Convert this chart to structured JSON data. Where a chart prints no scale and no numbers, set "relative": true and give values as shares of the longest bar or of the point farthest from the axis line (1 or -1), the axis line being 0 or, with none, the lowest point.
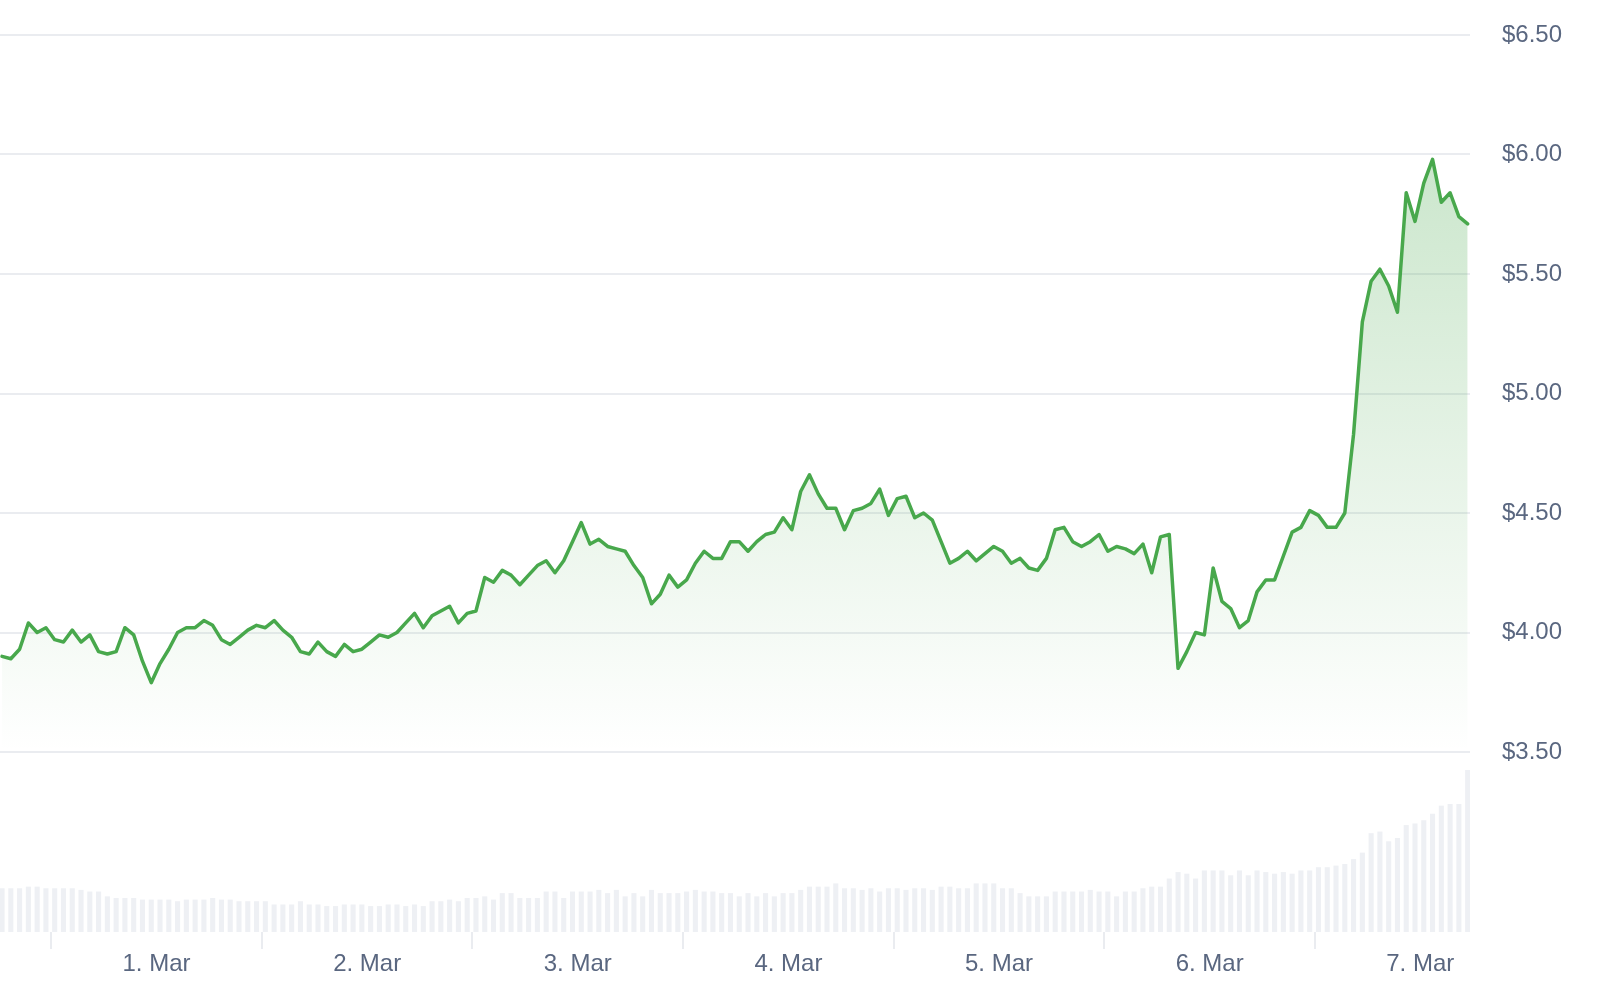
{
  "chart_data": [
    {
      "type": "area",
      "tick_labels": "y",
      "grid": "y",
      "x": [
        "--02-28T06:24",
        "--02-28T07:24",
        "--02-28T08:24",
        "--02-28T09:24",
        "--02-28T10:24",
        "--02-28T11:24",
        "--02-28T12:24",
        "--02-28T13:24",
        "--02-28T14:24",
        "--02-28T15:24",
        "--02-28T16:24",
        "--02-28T17:24",
        "--02-28T18:24",
        "--02-28T19:24",
        "--02-28T20:24",
        "--02-28T21:24",
        "--02-28T22:24",
        "--02-28T23:24",
        "--03-01T00:24",
        "--03-01T01:24",
        "--03-01T02:24",
        "--03-01T03:24",
        "--03-01T04:24",
        "--03-01T05:24",
        "--03-01T06:24",
        "--03-01T07:24",
        "--03-01T08:24",
        "--03-01T09:24",
        "--03-01T10:24",
        "--03-01T11:24",
        "--03-01T12:24",
        "--03-01T13:24",
        "--03-01T14:24",
        "--03-01T15:24",
        "--03-01T16:24",
        "--03-01T17:24",
        "--03-01T18:24",
        "--03-01T19:24",
        "--03-01T20:24",
        "--03-01T21:24",
        "--03-01T22:24",
        "--03-01T23:24",
        "--03-02T00:24",
        "--03-02T01:24",
        "--03-02T02:24",
        "--03-02T03:24",
        "--03-02T04:24",
        "--03-02T05:24",
        "--03-02T06:24",
        "--03-02T07:24",
        "--03-02T08:24",
        "--03-02T09:24",
        "--03-02T10:24",
        "--03-02T11:24",
        "--03-02T12:24",
        "--03-02T13:24",
        "--03-02T14:24",
        "--03-02T15:24",
        "--03-02T16:24",
        "--03-02T17:24",
        "--03-02T18:24",
        "--03-02T19:24",
        "--03-02T20:24",
        "--03-02T21:24",
        "--03-02T22:24",
        "--03-02T23:24",
        "--03-03T00:24",
        "--03-03T01:24",
        "--03-03T02:24",
        "--03-03T03:24",
        "--03-03T04:24",
        "--03-03T05:24",
        "--03-03T06:24",
        "--03-03T07:24",
        "--03-03T08:24",
        "--03-03T09:24",
        "--03-03T10:24",
        "--03-03T11:24",
        "--03-03T12:24",
        "--03-03T13:24",
        "--03-03T14:24",
        "--03-03T15:24",
        "--03-03T16:24",
        "--03-03T17:24",
        "--03-03T18:24",
        "--03-03T19:24",
        "--03-03T20:24",
        "--03-03T21:24",
        "--03-03T22:24",
        "--03-03T23:24",
        "--03-04T00:24",
        "--03-04T01:24",
        "--03-04T02:24",
        "--03-04T03:24",
        "--03-04T04:24",
        "--03-04T05:24",
        "--03-04T06:24",
        "--03-04T07:24",
        "--03-04T08:24",
        "--03-04T09:24",
        "--03-04T10:24",
        "--03-04T11:24",
        "--03-04T12:24",
        "--03-04T13:24",
        "--03-04T14:24",
        "--03-04T15:24",
        "--03-04T16:24",
        "--03-04T17:24",
        "--03-04T18:24",
        "--03-04T19:24",
        "--03-04T20:24",
        "--03-04T21:24",
        "--03-04T22:24",
        "--03-04T23:24",
        "--03-05T00:24",
        "--03-05T01:24",
        "--03-05T02:24",
        "--03-05T03:24",
        "--03-05T04:24",
        "--03-05T05:24",
        "--03-05T06:24",
        "--03-05T07:24",
        "--03-05T08:24",
        "--03-05T09:24",
        "--03-05T10:24",
        "--03-05T11:24",
        "--03-05T12:24",
        "--03-05T13:24",
        "--03-05T14:24",
        "--03-05T15:24",
        "--03-05T16:24",
        "--03-05T17:24",
        "--03-05T18:24",
        "--03-05T19:24",
        "--03-05T20:24",
        "--03-05T21:24",
        "--03-05T22:24",
        "--03-05T23:24",
        "--03-06T00:24",
        "--03-06T01:24",
        "--03-06T02:24",
        "--03-06T03:24",
        "--03-06T04:24",
        "--03-06T05:24",
        "--03-06T06:24",
        "--03-06T07:24",
        "--03-06T08:24",
        "--03-06T09:24",
        "--03-06T10:24",
        "--03-06T11:24",
        "--03-06T12:24",
        "--03-06T13:24",
        "--03-06T14:24",
        "--03-06T15:24",
        "--03-06T16:24",
        "--03-06T17:24",
        "--03-06T18:24",
        "--03-06T19:24",
        "--03-06T20:24",
        "--03-06T21:24",
        "--03-06T22:24",
        "--03-06T23:24",
        "--03-07T00:24",
        "--03-07T01:24",
        "--03-07T02:24",
        "--03-07T03:24",
        "--03-07T04:24",
        "--03-07T05:24"
      ],
      "xlim": [
        "--02-28T06:10",
        "--03-07T05:40"
      ],
      "ylim": [
        3.5,
        6.5
      ],
      "yticks": [
        {
          "value": 3.5,
          "label": "$3.50"
        },
        {
          "value": 4,
          "label": "$4.00"
        },
        {
          "value": 4.5,
          "label": "$4.50"
        },
        {
          "value": 5,
          "label": "$5.00"
        },
        {
          "value": 5.5,
          "label": "$5.50"
        },
        {
          "value": 6,
          "label": "$6.00"
        },
        {
          "value": 6.5,
          "label": "$6.50"
        }
      ],
      "series": [
        {
          "color": "#48a84c",
          "values": [
            3.9,
            3.89,
            3.93,
            4.04,
            4.0,
            4.02,
            3.97,
            3.96,
            4.01,
            3.96,
            3.99,
            3.92,
            3.91,
            3.92,
            4.02,
            3.99,
            3.88,
            3.79,
            3.87,
            3.93,
            4.0,
            4.02,
            4.02,
            4.05,
            4.03,
            3.97,
            3.95,
            3.98,
            4.01,
            4.03,
            4.02,
            4.05,
            4.01,
            3.98,
            3.92,
            3.91,
            3.96,
            3.92,
            3.9,
            3.95,
            3.92,
            3.93,
            3.96,
            3.99,
            3.98,
            4.0,
            4.04,
            4.08,
            4.02,
            4.07,
            4.09,
            4.11,
            4.04,
            4.08,
            4.09,
            4.23,
            4.21,
            4.26,
            4.24,
            4.2,
            4.24,
            4.28,
            4.3,
            4.25,
            4.3,
            4.38,
            4.46,
            4.37,
            4.39,
            4.36,
            4.35,
            4.34,
            4.28,
            4.23,
            4.12,
            4.16,
            4.24,
            4.19,
            4.22,
            4.29,
            4.34,
            4.31,
            4.31,
            4.38,
            4.38,
            4.34,
            4.38,
            4.41,
            4.42,
            4.48,
            4.43,
            4.59,
            4.66,
            4.58,
            4.52,
            4.52,
            4.43,
            4.51,
            4.52,
            4.54,
            4.6,
            4.49,
            4.56,
            4.57,
            4.48,
            4.5,
            4.47,
            4.38,
            4.29,
            4.31,
            4.34,
            4.3,
            4.33,
            4.36,
            4.34,
            4.29,
            4.31,
            4.27,
            4.26,
            4.31,
            4.43,
            4.44,
            4.38,
            4.36,
            4.38,
            4.41,
            4.34,
            4.36,
            4.35,
            4.33,
            4.37,
            4.25,
            4.4,
            4.41,
            3.85,
            3.92,
            4.0,
            3.99,
            4.27,
            4.13,
            4.1,
            4.02,
            4.05,
            4.17,
            4.22,
            4.22,
            4.32,
            4.42,
            4.44,
            4.51,
            4.49,
            4.44,
            4.44,
            4.5,
            4.83,
            5.3,
            5.47,
            5.52,
            5.45,
            5.34,
            5.84,
            5.72,
            5.88,
            5.98,
            5.8,
            5.84,
            5.74,
            5.71
          ]
        }
      ]
    },
    {
      "type": "bar",
      "relative": true,
      "tick_labels": "x",
      "x": [
        "--02-28T06:24",
        "--02-28T07:24",
        "--02-28T08:24",
        "--02-28T09:24",
        "--02-28T10:24",
        "--02-28T11:24",
        "--02-28T12:24",
        "--02-28T13:24",
        "--02-28T14:24",
        "--02-28T15:24",
        "--02-28T16:24",
        "--02-28T17:24",
        "--02-28T18:24",
        "--02-28T19:24",
        "--02-28T20:24",
        "--02-28T21:24",
        "--02-28T22:24",
        "--02-28T23:24",
        "--03-01T00:24",
        "--03-01T01:24",
        "--03-01T02:24",
        "--03-01T03:24",
        "--03-01T04:24",
        "--03-01T05:24",
        "--03-01T06:24",
        "--03-01T07:24",
        "--03-01T08:24",
        "--03-01T09:24",
        "--03-01T10:24",
        "--03-01T11:24",
        "--03-01T12:24",
        "--03-01T13:24",
        "--03-01T14:24",
        "--03-01T15:24",
        "--03-01T16:24",
        "--03-01T17:24",
        "--03-01T18:24",
        "--03-01T19:24",
        "--03-01T20:24",
        "--03-01T21:24",
        "--03-01T22:24",
        "--03-01T23:24",
        "--03-02T00:24",
        "--03-02T01:24",
        "--03-02T02:24",
        "--03-02T03:24",
        "--03-02T04:24",
        "--03-02T05:24",
        "--03-02T06:24",
        "--03-02T07:24",
        "--03-02T08:24",
        "--03-02T09:24",
        "--03-02T10:24",
        "--03-02T11:24",
        "--03-02T12:24",
        "--03-02T13:24",
        "--03-02T14:24",
        "--03-02T15:24",
        "--03-02T16:24",
        "--03-02T17:24",
        "--03-02T18:24",
        "--03-02T19:24",
        "--03-02T20:24",
        "--03-02T21:24",
        "--03-02T22:24",
        "--03-02T23:24",
        "--03-03T00:24",
        "--03-03T01:24",
        "--03-03T02:24",
        "--03-03T03:24",
        "--03-03T04:24",
        "--03-03T05:24",
        "--03-03T06:24",
        "--03-03T07:24",
        "--03-03T08:24",
        "--03-03T09:24",
        "--03-03T10:24",
        "--03-03T11:24",
        "--03-03T12:24",
        "--03-03T13:24",
        "--03-03T14:24",
        "--03-03T15:24",
        "--03-03T16:24",
        "--03-03T17:24",
        "--03-03T18:24",
        "--03-03T19:24",
        "--03-03T20:24",
        "--03-03T21:24",
        "--03-03T22:24",
        "--03-03T23:24",
        "--03-04T00:24",
        "--03-04T01:24",
        "--03-04T02:24",
        "--03-04T03:24",
        "--03-04T04:24",
        "--03-04T05:24",
        "--03-04T06:24",
        "--03-04T07:24",
        "--03-04T08:24",
        "--03-04T09:24",
        "--03-04T10:24",
        "--03-04T11:24",
        "--03-04T12:24",
        "--03-04T13:24",
        "--03-04T14:24",
        "--03-04T15:24",
        "--03-04T16:24",
        "--03-04T17:24",
        "--03-04T18:24",
        "--03-04T19:24",
        "--03-04T20:24",
        "--03-04T21:24",
        "--03-04T22:24",
        "--03-04T23:24",
        "--03-05T00:24",
        "--03-05T01:24",
        "--03-05T02:24",
        "--03-05T03:24",
        "--03-05T04:24",
        "--03-05T05:24",
        "--03-05T06:24",
        "--03-05T07:24",
        "--03-05T08:24",
        "--03-05T09:24",
        "--03-05T10:24",
        "--03-05T11:24",
        "--03-05T12:24",
        "--03-05T13:24",
        "--03-05T14:24",
        "--03-05T15:24",
        "--03-05T16:24",
        "--03-05T17:24",
        "--03-05T18:24",
        "--03-05T19:24",
        "--03-05T20:24",
        "--03-05T21:24",
        "--03-05T22:24",
        "--03-05T23:24",
        "--03-06T00:24",
        "--03-06T01:24",
        "--03-06T02:24",
        "--03-06T03:24",
        "--03-06T04:24",
        "--03-06T05:24",
        "--03-06T06:24",
        "--03-06T07:24",
        "--03-06T08:24",
        "--03-06T09:24",
        "--03-06T10:24",
        "--03-06T11:24",
        "--03-06T12:24",
        "--03-06T13:24",
        "--03-06T14:24",
        "--03-06T15:24",
        "--03-06T16:24",
        "--03-06T17:24",
        "--03-06T18:24",
        "--03-06T19:24",
        "--03-06T20:24",
        "--03-06T21:24",
        "--03-06T22:24",
        "--03-06T23:24",
        "--03-07T00:24",
        "--03-07T01:24",
        "--03-07T02:24",
        "--03-07T03:24",
        "--03-07T04:24",
        "--03-07T05:24"
      ],
      "xlim": [
        "--02-28T06:10",
        "--03-07T05:40"
      ],
      "xticks": [
        {
          "value": "--03-01",
          "label": "1. Mar"
        },
        {
          "value": "--03-02",
          "label": "2. Mar"
        },
        {
          "value": "--03-03",
          "label": "3. Mar"
        },
        {
          "value": "--03-04",
          "label": "4. Mar"
        },
        {
          "value": "--03-05",
          "label": "5. Mar"
        },
        {
          "value": "--03-06",
          "label": "6. Mar"
        },
        {
          "value": "--03-07",
          "label": "7. Mar"
        }
      ],
      "series": [
        {
          "color": "#eef0f4",
          "values": [
            0.27,
            0.27,
            0.27,
            0.28,
            0.28,
            0.27,
            0.27,
            0.27,
            0.27,
            0.26,
            0.25,
            0.25,
            0.22,
            0.21,
            0.21,
            0.21,
            0.2,
            0.2,
            0.2,
            0.2,
            0.19,
            0.2,
            0.2,
            0.2,
            0.21,
            0.2,
            0.2,
            0.19,
            0.19,
            0.19,
            0.19,
            0.17,
            0.17,
            0.17,
            0.19,
            0.17,
            0.17,
            0.16,
            0.16,
            0.17,
            0.17,
            0.17,
            0.16,
            0.16,
            0.17,
            0.17,
            0.16,
            0.17,
            0.16,
            0.19,
            0.19,
            0.2,
            0.19,
            0.21,
            0.21,
            0.22,
            0.2,
            0.24,
            0.24,
            0.21,
            0.21,
            0.21,
            0.25,
            0.25,
            0.21,
            0.25,
            0.25,
            0.25,
            0.26,
            0.24,
            0.26,
            0.22,
            0.24,
            0.22,
            0.26,
            0.24,
            0.24,
            0.24,
            0.25,
            0.26,
            0.25,
            0.25,
            0.24,
            0.24,
            0.22,
            0.24,
            0.22,
            0.24,
            0.22,
            0.24,
            0.24,
            0.26,
            0.28,
            0.28,
            0.28,
            0.3,
            0.27,
            0.27,
            0.26,
            0.27,
            0.25,
            0.27,
            0.27,
            0.26,
            0.27,
            0.27,
            0.26,
            0.28,
            0.28,
            0.27,
            0.27,
            0.3,
            0.3,
            0.3,
            0.27,
            0.27,
            0.24,
            0.22,
            0.22,
            0.22,
            0.25,
            0.25,
            0.25,
            0.25,
            0.26,
            0.25,
            0.25,
            0.22,
            0.25,
            0.25,
            0.27,
            0.28,
            0.28,
            0.33,
            0.37,
            0.36,
            0.33,
            0.38,
            0.38,
            0.38,
            0.35,
            0.38,
            0.35,
            0.38,
            0.37,
            0.36,
            0.37,
            0.36,
            0.38,
            0.38,
            0.4,
            0.4,
            0.41,
            0.42,
            0.45,
            0.49,
            0.61,
            0.62,
            0.56,
            0.58,
            0.66,
            0.67,
            0.69,
            0.73,
            0.78,
            0.79,
            0.79,
            1.0
          ]
        }
      ]
    }
  ]
}
